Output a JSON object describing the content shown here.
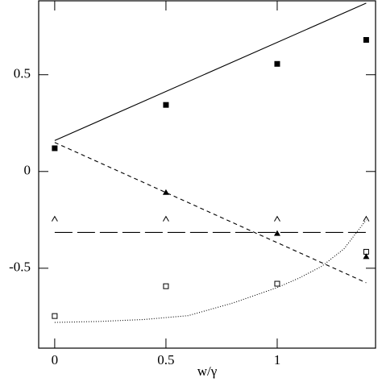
{
  "chart_data": {
    "type": "scatter",
    "xlabel": "w/γ",
    "xlim": [
      -0.072,
      1.442
    ],
    "ylim": [
      -0.913,
      0.882
    ],
    "xticks": [
      0,
      0.5,
      1
    ],
    "yticks": [
      -0.5,
      0,
      0.5
    ],
    "series": [
      {
        "marker": "square-filled",
        "color": "#000",
        "x": [
          0,
          0.5,
          1,
          1.4
        ],
        "values": [
          0.12,
          0.344,
          0.556,
          0.68
        ]
      },
      {
        "marker": "triangle-filled",
        "color": "#000",
        "x": [
          0.5,
          1,
          1.4
        ],
        "values": [
          -0.108,
          -0.32,
          -0.44
        ]
      },
      {
        "marker": "caret-open",
        "color": "#000",
        "x": [
          0,
          0.5,
          1,
          1.4
        ],
        "values": [
          -0.245,
          -0.245,
          -0.245,
          -0.245
        ]
      },
      {
        "marker": "square-open",
        "color": "#000",
        "x": [
          0,
          0.5,
          1,
          1.4
        ],
        "values": [
          -0.747,
          -0.593,
          -0.58,
          -0.415
        ]
      },
      {
        "line": "solid",
        "color": "#000",
        "x": [
          0,
          1.4
        ],
        "values": [
          0.16,
          0.87
        ]
      },
      {
        "line": "short-dash",
        "color": "#000",
        "x": [
          0,
          1.4
        ],
        "values": [
          0.15,
          -0.575
        ]
      },
      {
        "line": "long-dash",
        "color": "#000",
        "x": [
          0,
          1.4
        ],
        "values": [
          -0.315,
          -0.315
        ]
      },
      {
        "line": "dotted",
        "color": "#000",
        "x": [
          0,
          0.2,
          0.4,
          0.6,
          0.8,
          1.0,
          1.1,
          1.2,
          1.3,
          1.4
        ],
        "values": [
          -0.78,
          -0.775,
          -0.765,
          -0.745,
          -0.68,
          -0.6,
          -0.55,
          -0.49,
          -0.4,
          -0.25
        ]
      }
    ]
  }
}
